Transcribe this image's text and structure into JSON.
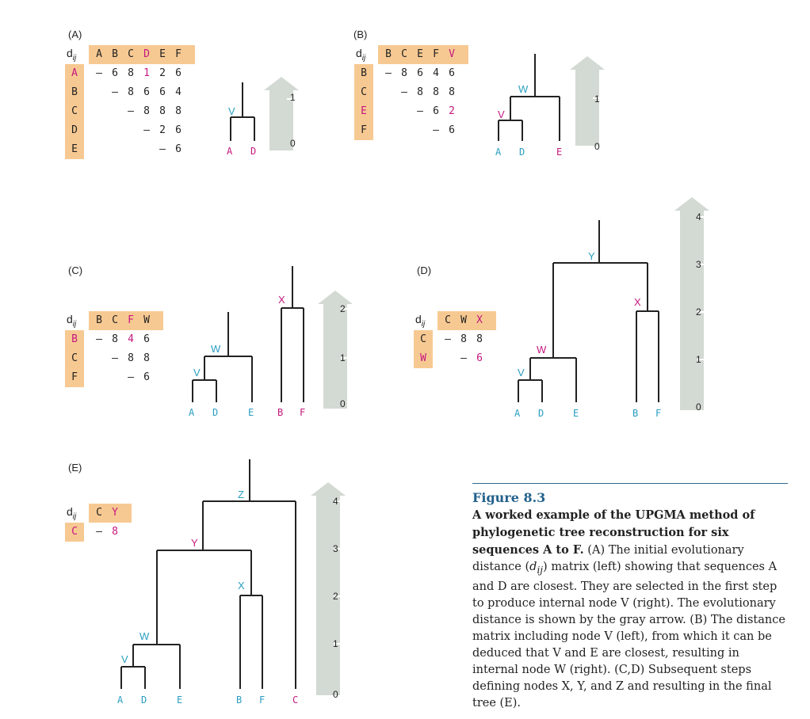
{
  "panels": [
    {
      "label": "(A)",
      "matrix": {
        "symbol": "d",
        "subscript": "ij",
        "cols": [
          "A",
          "B",
          "C",
          "D",
          "E",
          "F"
        ],
        "rows": [
          "A",
          "B",
          "C",
          "D",
          "E"
        ],
        "cells": [
          [
            "–",
            "6",
            "8",
            "1",
            "2",
            "6"
          ],
          [
            "",
            "–",
            "8",
            "6",
            "6",
            "4"
          ],
          [
            "",
            "",
            "–",
            "8",
            "8",
            "8"
          ],
          [
            "",
            "",
            "",
            "–",
            "2",
            "6"
          ],
          [
            "",
            "",
            "",
            "",
            "–",
            "6"
          ]
        ],
        "highlight_cols": [
          "D"
        ],
        "highlight_rows": [
          "A"
        ],
        "highlight_cells": [
          [
            0,
            3
          ]
        ]
      },
      "tree": {
        "leaves": [
          "A",
          "D"
        ],
        "nodes": [
          {
            "name": "V",
            "height": 0.5
          }
        ],
        "scale_ticks": [
          "0",
          "1"
        ]
      }
    },
    {
      "label": "(B)",
      "matrix": {
        "symbol": "d",
        "subscript": "ij",
        "cols": [
          "B",
          "C",
          "E",
          "F",
          "V"
        ],
        "rows": [
          "B",
          "C",
          "E",
          "F"
        ],
        "cells": [
          [
            "–",
            "8",
            "6",
            "4",
            "6"
          ],
          [
            "",
            "–",
            "8",
            "8",
            "8"
          ],
          [
            "",
            "",
            "–",
            "6",
            "2"
          ],
          [
            "",
            "",
            "",
            "–",
            "6"
          ]
        ],
        "highlight_cols": [
          "V"
        ],
        "highlight_rows": [
          "E"
        ],
        "highlight_cells": [
          [
            2,
            4
          ]
        ]
      },
      "tree": {
        "leaves": [
          "A",
          "D",
          "E"
        ],
        "nodes": [
          {
            "name": "V",
            "height": 0.5
          },
          {
            "name": "W",
            "height": 1
          }
        ],
        "scale_ticks": [
          "0",
          "1"
        ]
      }
    },
    {
      "label": "(C)",
      "matrix": {
        "symbol": "d",
        "subscript": "ij",
        "cols": [
          "B",
          "C",
          "F",
          "W"
        ],
        "rows": [
          "B",
          "C",
          "F"
        ],
        "cells": [
          [
            "–",
            "8",
            "4",
            "6"
          ],
          [
            "",
            "–",
            "8",
            "8"
          ],
          [
            "",
            "",
            "–",
            "6"
          ]
        ],
        "highlight_cols": [
          "F"
        ],
        "highlight_rows": [
          "B"
        ],
        "highlight_cells": [
          [
            0,
            2
          ]
        ]
      },
      "tree": {
        "leaves": [
          "A",
          "D",
          "E",
          "B",
          "F"
        ],
        "nodes": [
          {
            "name": "V",
            "height": 0.5
          },
          {
            "name": "W",
            "height": 1
          },
          {
            "name": "X",
            "height": 2
          }
        ],
        "scale_ticks": [
          "0",
          "1",
          "2"
        ]
      }
    },
    {
      "label": "(D)",
      "matrix": {
        "symbol": "d",
        "subscript": "ij",
        "cols": [
          "C",
          "W",
          "X"
        ],
        "rows": [
          "C",
          "W"
        ],
        "cells": [
          [
            "–",
            "8",
            "8"
          ],
          [
            "",
            "–",
            "6"
          ]
        ],
        "highlight_cols": [
          "X"
        ],
        "highlight_rows": [
          "W"
        ],
        "highlight_cells": [
          [
            1,
            2
          ]
        ]
      },
      "tree": {
        "leaves": [
          "A",
          "D",
          "E",
          "B",
          "F"
        ],
        "nodes": [
          {
            "name": "V",
            "height": 0.5
          },
          {
            "name": "W",
            "height": 1
          },
          {
            "name": "X",
            "height": 2
          },
          {
            "name": "Y",
            "height": 3
          }
        ],
        "scale_ticks": [
          "0",
          "1",
          "2",
          "3",
          "4"
        ]
      }
    },
    {
      "label": "(E)",
      "matrix": {
        "symbol": "d",
        "subscript": "ij",
        "cols": [
          "C",
          "Y"
        ],
        "rows": [
          "C"
        ],
        "cells": [
          [
            "–",
            "8"
          ]
        ],
        "highlight_cols": [
          "Y"
        ],
        "highlight_rows": [
          "C"
        ],
        "highlight_cells": [
          [
            0,
            1
          ]
        ]
      },
      "tree": {
        "leaves": [
          "A",
          "D",
          "E",
          "B",
          "F",
          "C"
        ],
        "nodes": [
          {
            "name": "V",
            "height": 0.5
          },
          {
            "name": "W",
            "height": 1
          },
          {
            "name": "X",
            "height": 2
          },
          {
            "name": "Y",
            "height": 3
          },
          {
            "name": "Z",
            "height": 4
          }
        ],
        "scale_ticks": [
          "0",
          "1",
          "2",
          "3",
          "4"
        ]
      }
    }
  ],
  "caption": {
    "title": "Figure 8.3",
    "bold_lead": "A worked example of the UPGMA method of phylogenetic tree reconstruction for six sequences A to F.",
    "body_1": " (A) The initial evolutionary distance (",
    "body_sym": "d",
    "body_sub": "ij",
    "body_2": ") matrix (left) showing that sequences A and D are closest. They are selected in the first step to produce internal node V (right). The evolutionary distance is shown by the gray arrow. (B) The distance matrix including node V (left), from which it can be deduced that V and E are closest, resulting in internal node W (right). (C,D) Subsequent steps defining nodes X, Y, and Z and resulting in the final tree (E)."
  },
  "colors": {
    "header_bg": "#f7c992",
    "highlight": "#c4187f",
    "leaf_node": "#2a9ec0",
    "arrow_gray": "#d3d9d3",
    "caption_title": "#23628d",
    "branch": "#222222"
  }
}
